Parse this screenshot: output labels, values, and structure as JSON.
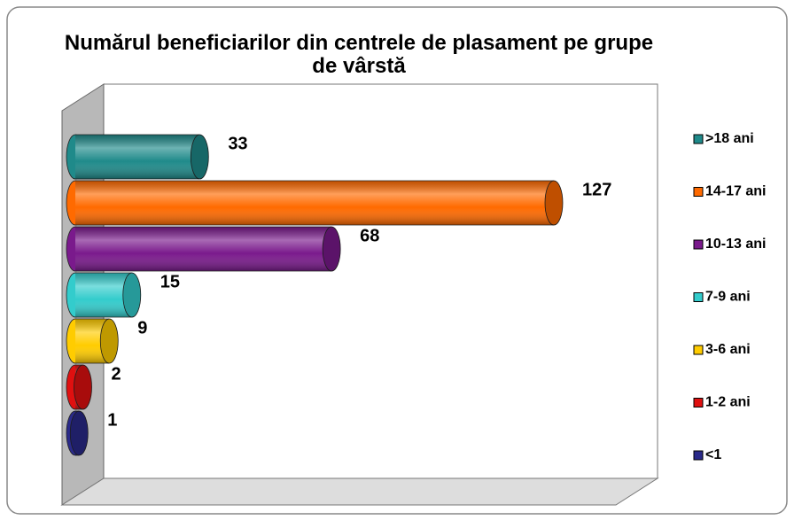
{
  "chart_data": {
    "type": "bar",
    "title": "Numărul beneficiarilor din centrele de plasament pe grupe de vârstă",
    "series": [
      {
        "name": ">18 ani",
        "color": "#1f8a8a",
        "values": [
          33
        ]
      },
      {
        "name": "14-17 ani",
        "color": "#ff6a00",
        "values": [
          127
        ]
      },
      {
        "name": "10-13 ani",
        "color": "#7a1a8c",
        "values": [
          68
        ]
      },
      {
        "name": "7-9 ani",
        "color": "#33cccc",
        "values": [
          15
        ]
      },
      {
        "name": "3-6 ani",
        "color": "#ffcc00",
        "values": [
          9
        ]
      },
      {
        "name": "1-2 ani",
        "color": "#e01010",
        "values": [
          2
        ]
      },
      {
        "name": "<1",
        "color": "#2a2a8a",
        "values": [
          1
        ]
      }
    ]
  }
}
